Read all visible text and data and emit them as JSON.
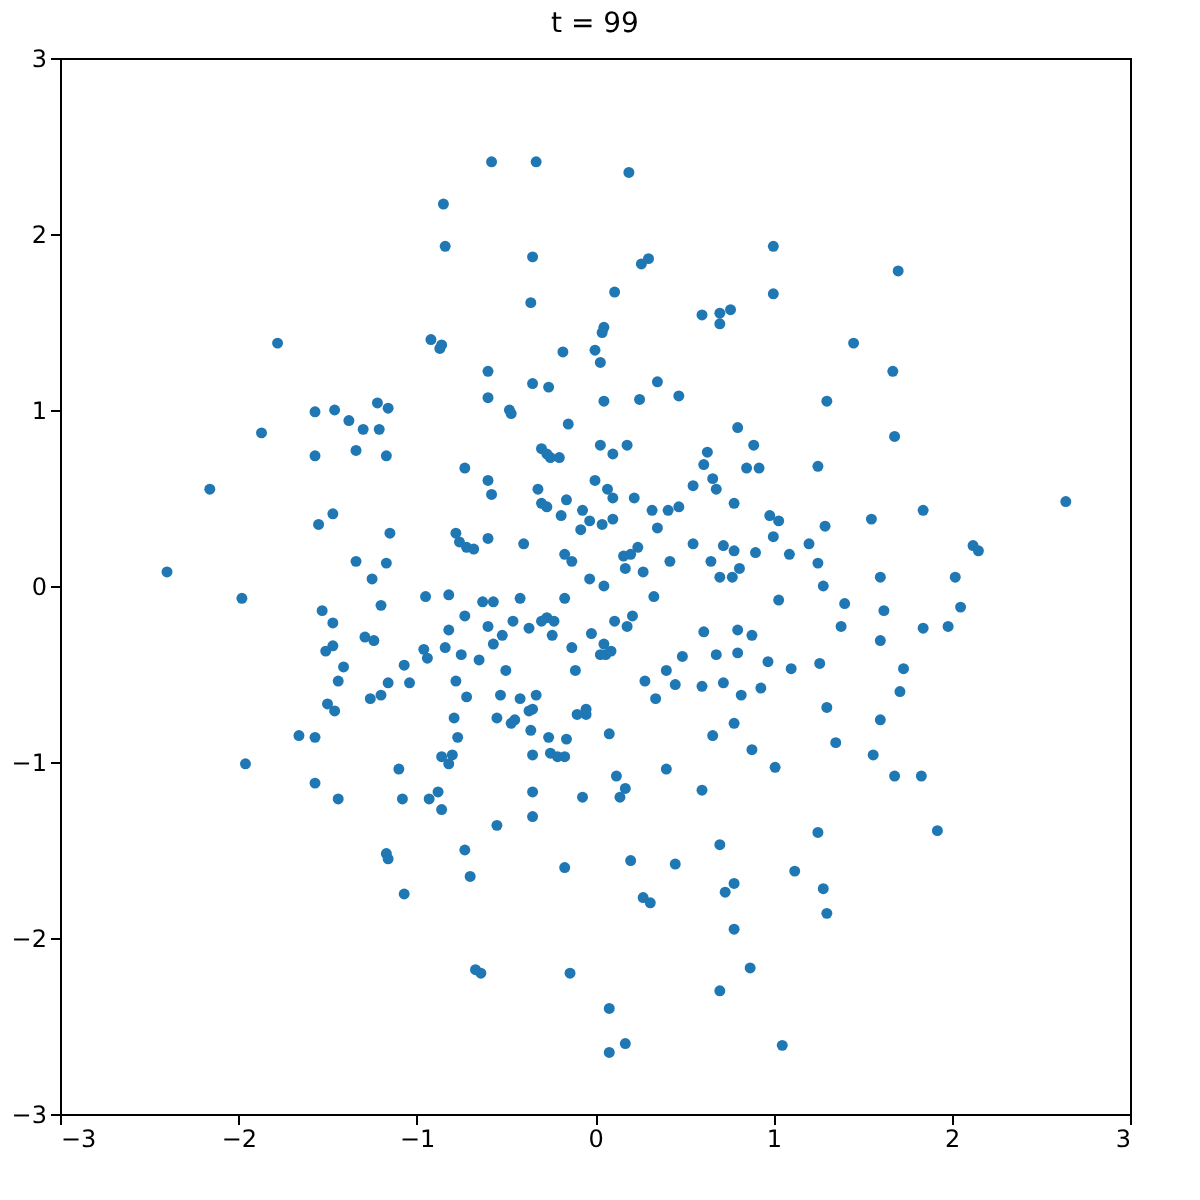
{
  "chart_data": {
    "type": "scatter",
    "title": "t = 99",
    "xlim": [
      -3,
      3
    ],
    "ylim": [
      -3,
      3
    ],
    "xticks": [
      -3,
      -2,
      -1,
      0,
      1,
      2,
      3
    ],
    "yticks": [
      -3,
      -2,
      -1,
      0,
      1,
      2,
      3
    ],
    "grid": false,
    "marker": "circle",
    "series": [
      {
        "color": "#1f77b4",
        "x": [
          -0.58,
          -0.33,
          0.19,
          -0.85,
          -0.84,
          1.0,
          -0.35,
          0.3,
          0.26,
          1.7,
          0.11,
          1.0,
          -0.36,
          0.76,
          0.7,
          0.6,
          0.7,
          0.05,
          0.04,
          -0.92,
          -0.86,
          -0.87,
          -1.78,
          1.45,
          -0.18,
          0.0,
          0.03,
          -0.6,
          1.67,
          -0.35,
          -0.26,
          0.35,
          0.25,
          0.05,
          0.47,
          -0.6,
          -0.48,
          -0.47,
          1.3,
          -1.46,
          -1.38,
          -1.22,
          -1.16,
          -1.57,
          -1.3,
          -1.21,
          -1.87,
          0.89,
          0.8,
          1.68,
          0.63,
          0.61,
          0.92,
          0.66,
          0.68,
          1.25,
          0.18,
          0.03,
          -0.3,
          -0.27,
          -0.25,
          -0.2,
          -0.15,
          -1.57,
          -1.17,
          -1.34,
          -0.73,
          -0.6,
          -0.32,
          -0.27,
          0.0,
          0.07,
          0.1,
          0.41,
          0.22,
          0.1,
          -2.16,
          -0.07,
          -0.16,
          -0.19,
          -0.3,
          -0.58,
          0.78,
          0.47,
          0.55,
          0.85,
          0.98,
          1.03,
          1.29,
          1.55,
          1.84,
          2.12,
          2.15,
          2.64,
          -2.4,
          -1.55,
          -1.47,
          -1.15,
          -0.78,
          -0.76,
          -0.72,
          -0.68,
          -0.6,
          -0.4,
          -0.08,
          -0.03,
          0.04,
          0.1,
          0.35,
          0.32,
          -0.17,
          -0.13,
          -0.03,
          0.16,
          0.05,
          0.24,
          0.2,
          0.17,
          0.27,
          0.42,
          0.55,
          0.72,
          0.78,
          0.9,
          0.65,
          0.7,
          0.77,
          0.81,
          1.0,
          1.2,
          1.25,
          1.28,
          1.09,
          1.03,
          1.6,
          2.02,
          2.05,
          1.98,
          1.84,
          1.62,
          1.6,
          1.73,
          1.71,
          1.6,
          1.56,
          1.68,
          1.83,
          1.92,
          1.35,
          1.3,
          1.26,
          0.97,
          0.8,
          0.88,
          0.93,
          0.72,
          0.8,
          0.61,
          0.68,
          0.82,
          0.88,
          0.78,
          0.66,
          1.01,
          0.49,
          0.4,
          0.45,
          0.6,
          0.34,
          0.28,
          0.33,
          0.05,
          0.03,
          0.06,
          0.09,
          -0.02,
          -0.13,
          -0.11,
          0.18,
          0.21,
          0.11,
          -0.17,
          -0.27,
          -0.3,
          -0.23,
          -0.24,
          -0.37,
          -0.46,
          -0.42,
          -0.63,
          -0.57,
          -0.82,
          -0.95,
          -0.6,
          -0.52,
          -0.57,
          -0.75,
          -0.73,
          -0.82,
          -0.65,
          -0.5,
          -0.53,
          -0.42,
          -0.35,
          -0.33,
          -0.05,
          -0.05,
          0.08,
          -0.37,
          -0.45,
          -0.36,
          -0.55,
          -0.47,
          -0.1,
          -0.26,
          -0.16,
          0.12,
          0.14,
          0.17,
          0.4,
          0.6,
          -0.35,
          -0.25,
          -0.72,
          -0.78,
          -0.79,
          -0.77,
          -0.8,
          -0.86,
          -0.82,
          -0.88,
          -0.86,
          -0.93,
          -0.35,
          -0.35,
          -0.55,
          -0.07,
          -0.17,
          -0.21,
          -0.96,
          -0.84,
          -0.94,
          -1.07,
          -1.04,
          -1.16,
          -1.29,
          -1.24,
          -1.53,
          -1.47,
          -1.47,
          -1.51,
          -1.41,
          -1.2,
          -1.25,
          -1.17,
          -1.34,
          -1.2,
          -1.26,
          -1.46,
          -1.5,
          -1.44,
          -1.66,
          -1.57,
          -1.1,
          -1.57,
          -1.08,
          -1.44,
          -1.17,
          -1.16,
          -1.07,
          -1.96,
          -1.98,
          -0.73,
          -0.7,
          0.7,
          0.78,
          0.78,
          0.73,
          0.45,
          0.2,
          0.27,
          0.31,
          -0.17,
          0.7,
          0.87,
          1.05,
          1.28,
          1.3,
          1.25,
          1.12,
          -0.14,
          -0.67,
          -0.64,
          0.08,
          0.17,
          0.08,
          1.1,
          1.38,
          1.4
        ],
        "values": [
          2.41,
          2.41,
          2.35,
          2.17,
          1.93,
          1.93,
          1.87,
          1.86,
          1.83,
          1.79,
          1.67,
          1.66,
          1.61,
          1.57,
          1.55,
          1.54,
          1.49,
          1.47,
          1.44,
          1.4,
          1.37,
          1.35,
          1.38,
          1.38,
          1.33,
          1.34,
          1.27,
          1.22,
          1.22,
          1.15,
          1.13,
          1.16,
          1.06,
          1.05,
          1.08,
          1.07,
          1.0,
          0.98,
          1.05,
          1.0,
          0.94,
          1.04,
          1.01,
          0.99,
          0.89,
          0.89,
          0.87,
          0.8,
          0.9,
          0.85,
          0.76,
          0.69,
          0.67,
          0.61,
          0.55,
          0.68,
          0.8,
          0.8,
          0.78,
          0.75,
          0.73,
          0.73,
          0.92,
          0.74,
          0.74,
          0.77,
          0.67,
          0.6,
          0.55,
          0.45,
          0.6,
          0.55,
          0.5,
          0.43,
          0.5,
          0.75,
          0.55,
          0.43,
          0.49,
          0.4,
          0.47,
          0.52,
          0.47,
          0.45,
          0.57,
          0.67,
          0.4,
          0.37,
          0.34,
          0.38,
          0.43,
          0.23,
          0.2,
          0.48,
          0.08,
          0.35,
          0.41,
          0.3,
          0.3,
          0.25,
          0.22,
          0.21,
          0.27,
          0.24,
          0.32,
          0.37,
          0.35,
          0.38,
          0.33,
          0.43,
          0.18,
          0.14,
          0.04,
          0.17,
          0.0,
          0.22,
          0.18,
          0.1,
          0.08,
          0.14,
          0.24,
          0.23,
          0.2,
          0.19,
          0.14,
          0.05,
          0.05,
          0.1,
          0.28,
          0.24,
          0.13,
          0.0,
          0.18,
          -0.08,
          0.05,
          0.05,
          -0.12,
          -0.23,
          -0.24,
          -0.14,
          -0.31,
          -0.47,
          -0.6,
          -0.76,
          -0.96,
          -1.08,
          -1.08,
          -1.39,
          -0.89,
          -0.69,
          -0.44,
          -0.43,
          -0.38,
          -0.28,
          -0.58,
          -0.55,
          -0.25,
          -0.26,
          -0.39,
          -0.62,
          -0.93,
          -0.78,
          -0.85,
          -1.03,
          -0.4,
          -0.48,
          -0.56,
          -0.57,
          -0.64,
          -0.54,
          -0.06,
          -0.33,
          -0.39,
          -0.39,
          -0.37,
          -0.27,
          -0.35,
          -0.48,
          -0.23,
          -0.17,
          -0.2,
          -0.07,
          -0.18,
          -0.2,
          -0.2,
          -0.28,
          -0.24,
          -0.2,
          -0.07,
          -0.09,
          -0.09,
          -0.05,
          -0.06,
          -0.23,
          -0.28,
          -0.33,
          -0.39,
          -0.17,
          -0.25,
          -0.42,
          -0.48,
          -0.62,
          -0.64,
          -0.7,
          -0.62,
          -0.7,
          -0.73,
          -0.84,
          -0.71,
          -0.76,
          -0.82,
          -0.75,
          -0.78,
          -0.73,
          -0.86,
          -0.87,
          -1.08,
          -1.2,
          -1.15,
          -1.04,
          -1.16,
          -0.96,
          -0.95,
          -0.63,
          -0.54,
          -0.75,
          -0.86,
          -0.96,
          -0.97,
          -1.01,
          -1.17,
          -1.27,
          -1.21,
          -1.17,
          -1.31,
          -1.36,
          -1.2,
          -0.97,
          -0.97,
          -0.36,
          -0.35,
          -0.41,
          -0.45,
          -0.55,
          -0.55,
          -0.29,
          -0.31,
          -0.14,
          -0.21,
          -0.34,
          -0.37,
          -0.46,
          -0.11,
          0.04,
          0.13,
          0.14,
          -0.62,
          -0.64,
          -0.71,
          -0.67,
          -0.54,
          -0.85,
          -0.86,
          -1.04,
          -1.12,
          -1.21,
          -1.21,
          -1.52,
          -1.55,
          -1.75,
          -1.01,
          -0.07,
          -1.5,
          -1.65,
          -1.47,
          -1.69,
          -1.95,
          -1.74,
          -1.58,
          -1.56,
          -1.77,
          -1.8,
          -1.6,
          -2.3,
          -2.17,
          -2.61,
          -1.72,
          -1.86,
          -1.4,
          -1.62,
          -2.2,
          -2.18,
          -2.2,
          -2.4,
          -2.6,
          -2.65,
          -0.47,
          -0.23,
          -0.1
        ]
      }
    ]
  }
}
